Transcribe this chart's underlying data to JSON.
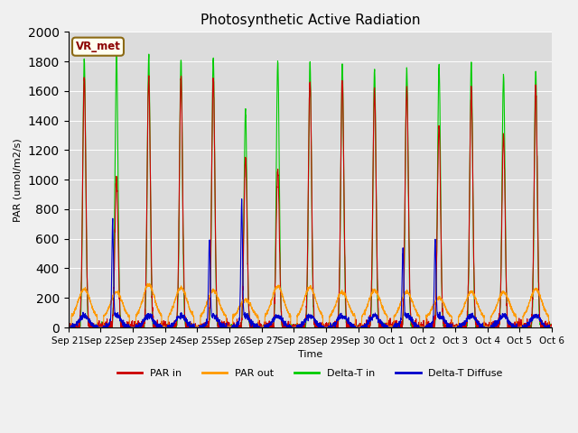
{
  "title": "Photosynthetic Active Radiation",
  "ylabel": "PAR (umol/m2/s)",
  "xlabel": "Time",
  "annotation": "VR_met",
  "ylim": [
    0,
    2000
  ],
  "bg_color": "#dcdcdc",
  "colors": {
    "PAR in": "#cc0000",
    "PAR out": "#ff9900",
    "Delta-T in": "#00cc00",
    "Delta-T Diffuse": "#0000cc"
  },
  "x_tick_labels": [
    "Sep 21",
    "Sep 22",
    "Sep 23",
    "Sep 24",
    "Sep 25",
    "Sep 26",
    "Sep 27",
    "Sep 28",
    "Sep 29",
    "Sep 30",
    "Oct 1",
    "Oct 2",
    "Oct 3",
    "Oct 4",
    "Oct 5",
    "Oct 6"
  ],
  "n_days": 15,
  "day_peaks": {
    "PAR_in": [
      1680,
      1000,
      1680,
      1680,
      1680,
      1150,
      1080,
      1680,
      1680,
      1610,
      1610,
      1360,
      1600,
      1300,
      1620
    ],
    "PAR_out": [
      260,
      240,
      290,
      270,
      250,
      190,
      280,
      270,
      240,
      250,
      240,
      200,
      240,
      240,
      260
    ],
    "Delta_T_in": [
      1820,
      1830,
      1840,
      1810,
      1820,
      1470,
      1800,
      1790,
      1780,
      1740,
      1750,
      1770,
      1790,
      1700,
      1730
    ],
    "Delta_T_Diffuse": [
      150,
      660,
      230,
      120,
      540,
      800,
      120,
      90,
      110,
      120,
      480,
      540,
      120,
      100,
      80
    ]
  },
  "title_fontsize": 11,
  "label_fontsize": 8,
  "tick_fontsize": 7.5,
  "legend_fontsize": 8
}
